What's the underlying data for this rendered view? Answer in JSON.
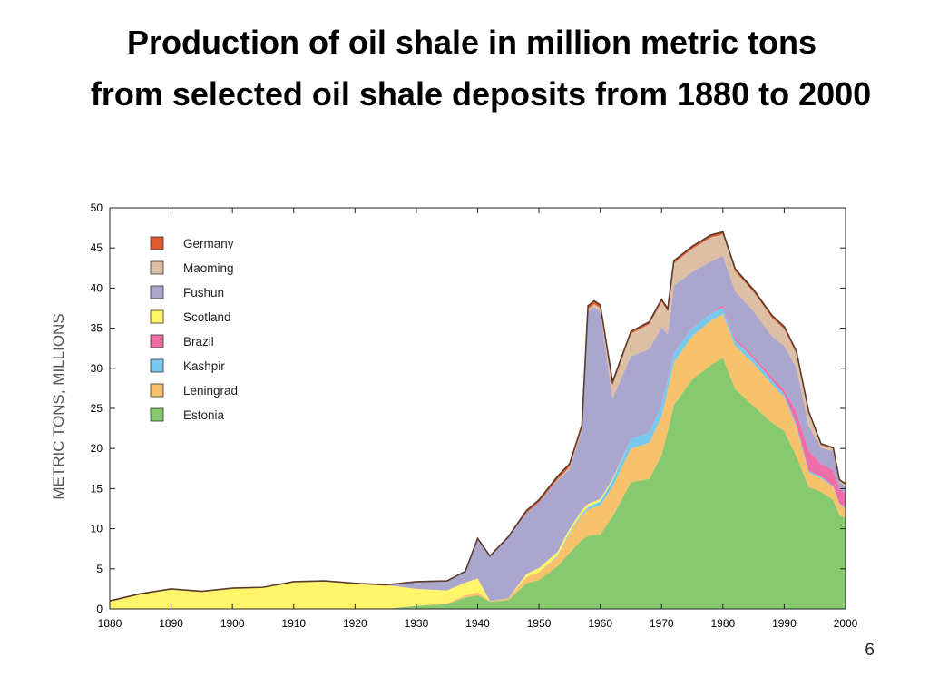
{
  "slide": {
    "title_line1": "Production of oil shale in million metric tons",
    "title_line2": "from selected oil shale deposits from 1880 to 2000",
    "page_number": "6"
  },
  "chart_data": {
    "type": "area",
    "stacked": true,
    "title": "",
    "xlabel": "",
    "ylabel": "METRIC TONS, MILLIONS",
    "xlim": [
      1880,
      2000
    ],
    "ylim": [
      0,
      50
    ],
    "x_ticks": [
      1880,
      1890,
      1900,
      1910,
      1920,
      1930,
      1940,
      1950,
      1960,
      1970,
      1980,
      1990,
      2000
    ],
    "y_ticks": [
      0,
      5,
      10,
      15,
      20,
      25,
      30,
      35,
      40,
      45,
      50
    ],
    "grid": false,
    "legend_position": "top-left",
    "x": [
      1880,
      1885,
      1890,
      1895,
      1900,
      1905,
      1910,
      1915,
      1920,
      1925,
      1930,
      1935,
      1938,
      1940,
      1942,
      1945,
      1948,
      1950,
      1953,
      1955,
      1957,
      1958,
      1959,
      1960,
      1962,
      1965,
      1968,
      1970,
      1971,
      1972,
      1975,
      1978,
      1980,
      1982,
      1985,
      1988,
      1990,
      1992,
      1994,
      1996,
      1998,
      1999,
      2000
    ],
    "series": [
      {
        "name": "Estonia",
        "color": "#86c96e",
        "values": [
          0,
          0,
          0,
          0,
          0,
          0,
          0,
          0,
          0,
          0,
          0.4,
          0.6,
          1.4,
          1.7,
          0.9,
          1.1,
          3.2,
          3.6,
          5.3,
          7.0,
          8.6,
          9.1,
          9.2,
          9.3,
          11.5,
          15.8,
          16.2,
          19.2,
          22.1,
          25.4,
          28.6,
          30.4,
          31.3,
          27.4,
          25.3,
          23.2,
          22.2,
          19.0,
          15.2,
          14.6,
          13.6,
          11.7,
          11.3
        ]
      },
      {
        "name": "Leningrad",
        "color": "#f7c26b",
        "values": [
          0,
          0,
          0,
          0,
          0,
          0,
          0,
          0,
          0,
          0,
          0,
          0.1,
          0.3,
          0.4,
          0.1,
          0.2,
          0.8,
          1.0,
          1.2,
          2.4,
          3.1,
          3.3,
          3.5,
          3.6,
          3.7,
          4.2,
          4.5,
          4.8,
          5.2,
          5.3,
          5.4,
          5.5,
          5.5,
          5.4,
          5.3,
          4.8,
          4.2,
          3.7,
          1.8,
          1.7,
          1.6,
          1.4,
          1.2
        ]
      },
      {
        "name": "Kashpir",
        "color": "#79c9ee",
        "values": [
          0,
          0,
          0,
          0,
          0,
          0,
          0,
          0,
          0,
          0,
          0,
          0,
          0,
          0,
          0,
          0,
          0,
          0,
          0.1,
          0.2,
          0.2,
          0.3,
          0.4,
          0.5,
          0.8,
          1.2,
          1.3,
          1.4,
          1.3,
          1.2,
          1.0,
          0.9,
          0.8,
          0.7,
          0.6,
          0.5,
          0.4,
          0.3,
          0.2,
          0.2,
          0.1,
          0.1,
          0.1
        ]
      },
      {
        "name": "Brazil",
        "color": "#ee6ea8",
        "values": [
          0,
          0,
          0,
          0,
          0,
          0,
          0,
          0,
          0,
          0,
          0,
          0,
          0,
          0,
          0,
          0,
          0,
          0,
          0,
          0,
          0,
          0,
          0,
          0,
          0,
          0,
          0,
          0,
          0,
          0,
          0,
          0,
          0.3,
          0.3,
          0.3,
          0.4,
          0.5,
          1.5,
          2.5,
          1.6,
          2.0,
          1.8,
          1.8
        ]
      },
      {
        "name": "Scotland",
        "color": "#fff56a",
        "values": [
          1.0,
          1.9,
          2.5,
          2.2,
          2.6,
          2.7,
          3.4,
          3.5,
          3.2,
          3.0,
          2.1,
          1.6,
          1.6,
          1.7,
          0,
          0,
          0.4,
          0.5,
          0.5,
          0.4,
          0.4,
          0.4,
          0.3,
          0.3,
          0.2,
          0,
          0,
          0,
          0,
          0,
          0,
          0,
          0,
          0,
          0,
          0,
          0,
          0,
          0,
          0,
          0,
          0,
          0
        ]
      },
      {
        "name": "Fushun",
        "color": "#aaa6cd",
        "values": [
          0,
          0,
          0,
          0,
          0,
          0,
          0,
          0,
          0,
          0,
          0.9,
          1.2,
          1.4,
          5.0,
          5.5,
          7.6,
          7.6,
          8.2,
          8.9,
          7.4,
          9.9,
          24.0,
          24.2,
          23.4,
          10.0,
          10.3,
          10.4,
          9.7,
          5.6,
          8.4,
          7.0,
          6.5,
          6.1,
          5.8,
          5.6,
          5.1,
          5.5,
          5.5,
          3.1,
          2.0,
          2.4,
          0.8,
          0.9
        ]
      },
      {
        "name": "Maoming",
        "color": "#dcbfa5",
        "values": [
          0,
          0,
          0,
          0,
          0,
          0,
          0,
          0,
          0,
          0,
          0,
          0,
          0,
          0,
          0,
          0,
          0,
          0,
          0.1,
          0.3,
          0.3,
          0.3,
          0.4,
          0.4,
          1.7,
          2.8,
          3.1,
          3.2,
          2.9,
          2.8,
          2.9,
          3.0,
          2.7,
          2.5,
          2.4,
          2.3,
          2.1,
          1.8,
          1.6,
          0.3,
          0.3,
          0.2,
          0.2
        ]
      },
      {
        "name": "Germany",
        "color": "#e05c32",
        "values": [
          0,
          0,
          0,
          0,
          0,
          0,
          0,
          0,
          0,
          0,
          0,
          0,
          0,
          0,
          0.1,
          0.1,
          0.3,
          0.3,
          0.4,
          0.4,
          0.4,
          0.4,
          0.4,
          0.4,
          0.4,
          0.3,
          0.3,
          0.3,
          0.3,
          0.3,
          0.3,
          0.3,
          0.3,
          0.3,
          0.3,
          0.3,
          0.3,
          0.3,
          0.2,
          0.2,
          0.1,
          0.1,
          0.1
        ]
      }
    ]
  }
}
